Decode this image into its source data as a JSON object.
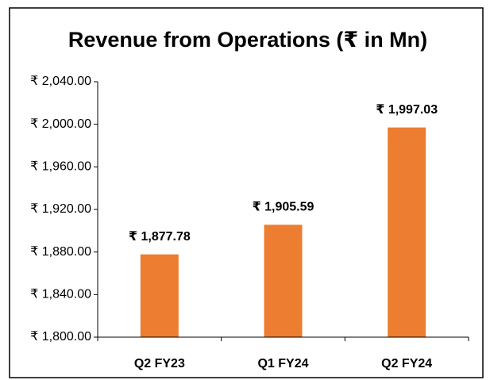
{
  "chart_data": {
    "type": "bar",
    "title": "Revenue from Operations (₹ in Mn)",
    "categories": [
      "Q2 FY23",
      "Q1 FY24",
      "Q2 FY24"
    ],
    "values": [
      1877.78,
      1905.59,
      1997.03
    ],
    "value_labels": [
      "₹ 1,877.78",
      "₹ 1,905.59",
      "₹ 1,997.03"
    ],
    "color": "#ed7d31",
    "ylim": [
      1800,
      2040
    ],
    "yticks": [
      {
        "value": 1800,
        "label": "₹ 1,800.00"
      },
      {
        "value": 1840,
        "label": "₹ 1,840.00"
      },
      {
        "value": 1880,
        "label": "₹ 1,880.00"
      },
      {
        "value": 1920,
        "label": "₹ 1,920.00"
      },
      {
        "value": 1960,
        "label": "₹ 1,960.00"
      },
      {
        "value": 2000,
        "label": "₹ 2,000.00"
      },
      {
        "value": 2040,
        "label": "₹ 2,040.00"
      }
    ],
    "grid": false
  }
}
